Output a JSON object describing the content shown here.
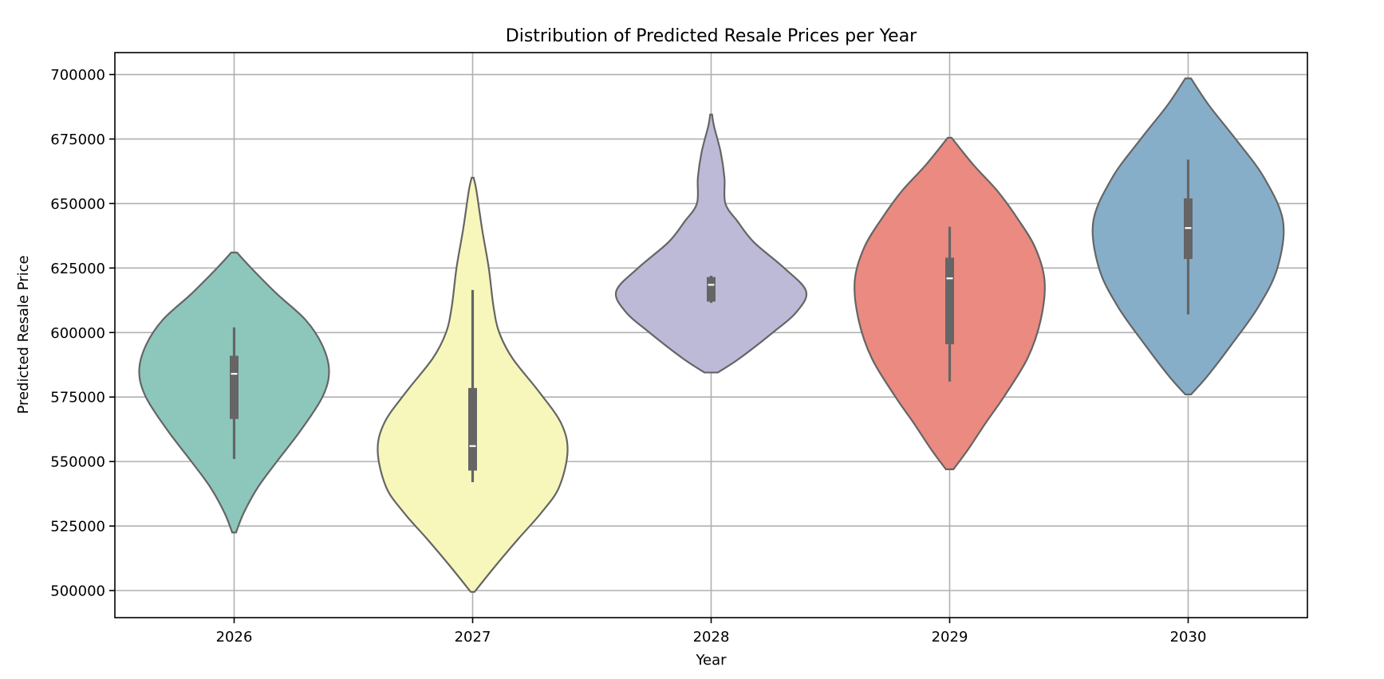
{
  "chart_data": {
    "type": "violin",
    "title": "Distribution of Predicted Resale Prices per Year",
    "xlabel": "Year",
    "ylabel": "Predicted Resale Price",
    "ylim": [
      489500,
      708500
    ],
    "yticks": [
      500000,
      525000,
      550000,
      575000,
      600000,
      625000,
      650000,
      675000,
      700000
    ],
    "grid": true,
    "categories": [
      "2026",
      "2027",
      "2028",
      "2029",
      "2030"
    ],
    "series": [
      {
        "category": "2026",
        "color": "#8dc7bb",
        "min": 522500,
        "max": 631000,
        "q1": 566500,
        "median": 584000,
        "q3": 591000,
        "whisker_low": 551000,
        "whisker_high": 602000,
        "density": [
          [
            522500,
            0.02
          ],
          [
            530000,
            0.1
          ],
          [
            540000,
            0.25
          ],
          [
            550000,
            0.45
          ],
          [
            562000,
            0.7
          ],
          [
            575000,
            0.93
          ],
          [
            585000,
            1.0
          ],
          [
            595000,
            0.93
          ],
          [
            605000,
            0.75
          ],
          [
            615000,
            0.45
          ],
          [
            625000,
            0.18
          ],
          [
            631000,
            0.03
          ]
        ]
      },
      {
        "category": "2027",
        "color": "#f7f7bb",
        "min": 499500,
        "max": 660000,
        "q1": 546500,
        "median": 556000,
        "q3": 578500,
        "whisker_low": 542000,
        "whisker_high": 616500,
        "density": [
          [
            499500,
            0.02
          ],
          [
            510000,
            0.25
          ],
          [
            520000,
            0.48
          ],
          [
            530000,
            0.72
          ],
          [
            540000,
            0.91
          ],
          [
            554000,
            1.0
          ],
          [
            565000,
            0.93
          ],
          [
            577000,
            0.7
          ],
          [
            590000,
            0.42
          ],
          [
            600000,
            0.28
          ],
          [
            610000,
            0.22
          ],
          [
            625000,
            0.17
          ],
          [
            640000,
            0.1
          ],
          [
            655000,
            0.04
          ],
          [
            660000,
            0.01
          ]
        ]
      },
      {
        "category": "2028",
        "color": "#bdbad8",
        "min": 584500,
        "max": 684500,
        "q1": 612000,
        "median": 618500,
        "q3": 621500,
        "whisker_low": 611500,
        "whisker_high": 622000,
        "density": [
          [
            584500,
            0.07
          ],
          [
            590000,
            0.3
          ],
          [
            600000,
            0.65
          ],
          [
            608000,
            0.9
          ],
          [
            616000,
            1.0
          ],
          [
            625000,
            0.77
          ],
          [
            635000,
            0.45
          ],
          [
            643000,
            0.28
          ],
          [
            650000,
            0.15
          ],
          [
            660000,
            0.14
          ],
          [
            670000,
            0.1
          ],
          [
            680000,
            0.03
          ],
          [
            684500,
            0.01
          ]
        ]
      },
      {
        "category": "2029",
        "color": "#ea8a80",
        "min": 547000,
        "max": 675500,
        "q1": 595500,
        "median": 621000,
        "q3": 629000,
        "whisker_low": 581000,
        "whisker_high": 641000,
        "density": [
          [
            547000,
            0.04
          ],
          [
            555000,
            0.2
          ],
          [
            565000,
            0.38
          ],
          [
            575000,
            0.57
          ],
          [
            590000,
            0.82
          ],
          [
            605000,
            0.96
          ],
          [
            620000,
            1.0
          ],
          [
            633000,
            0.9
          ],
          [
            645000,
            0.7
          ],
          [
            655000,
            0.5
          ],
          [
            665000,
            0.25
          ],
          [
            675500,
            0.02
          ]
        ]
      },
      {
        "category": "2030",
        "color": "#87aec9",
        "min": 576000,
        "max": 698500,
        "q1": 628500,
        "median": 640500,
        "q3": 652000,
        "whisker_low": 607000,
        "whisker_high": 667000,
        "density": [
          [
            576000,
            0.03
          ],
          [
            583000,
            0.2
          ],
          [
            595000,
            0.45
          ],
          [
            610000,
            0.74
          ],
          [
            625000,
            0.94
          ],
          [
            643000,
            1.0
          ],
          [
            660000,
            0.8
          ],
          [
            675000,
            0.5
          ],
          [
            688000,
            0.22
          ],
          [
            698500,
            0.03
          ]
        ]
      }
    ]
  }
}
